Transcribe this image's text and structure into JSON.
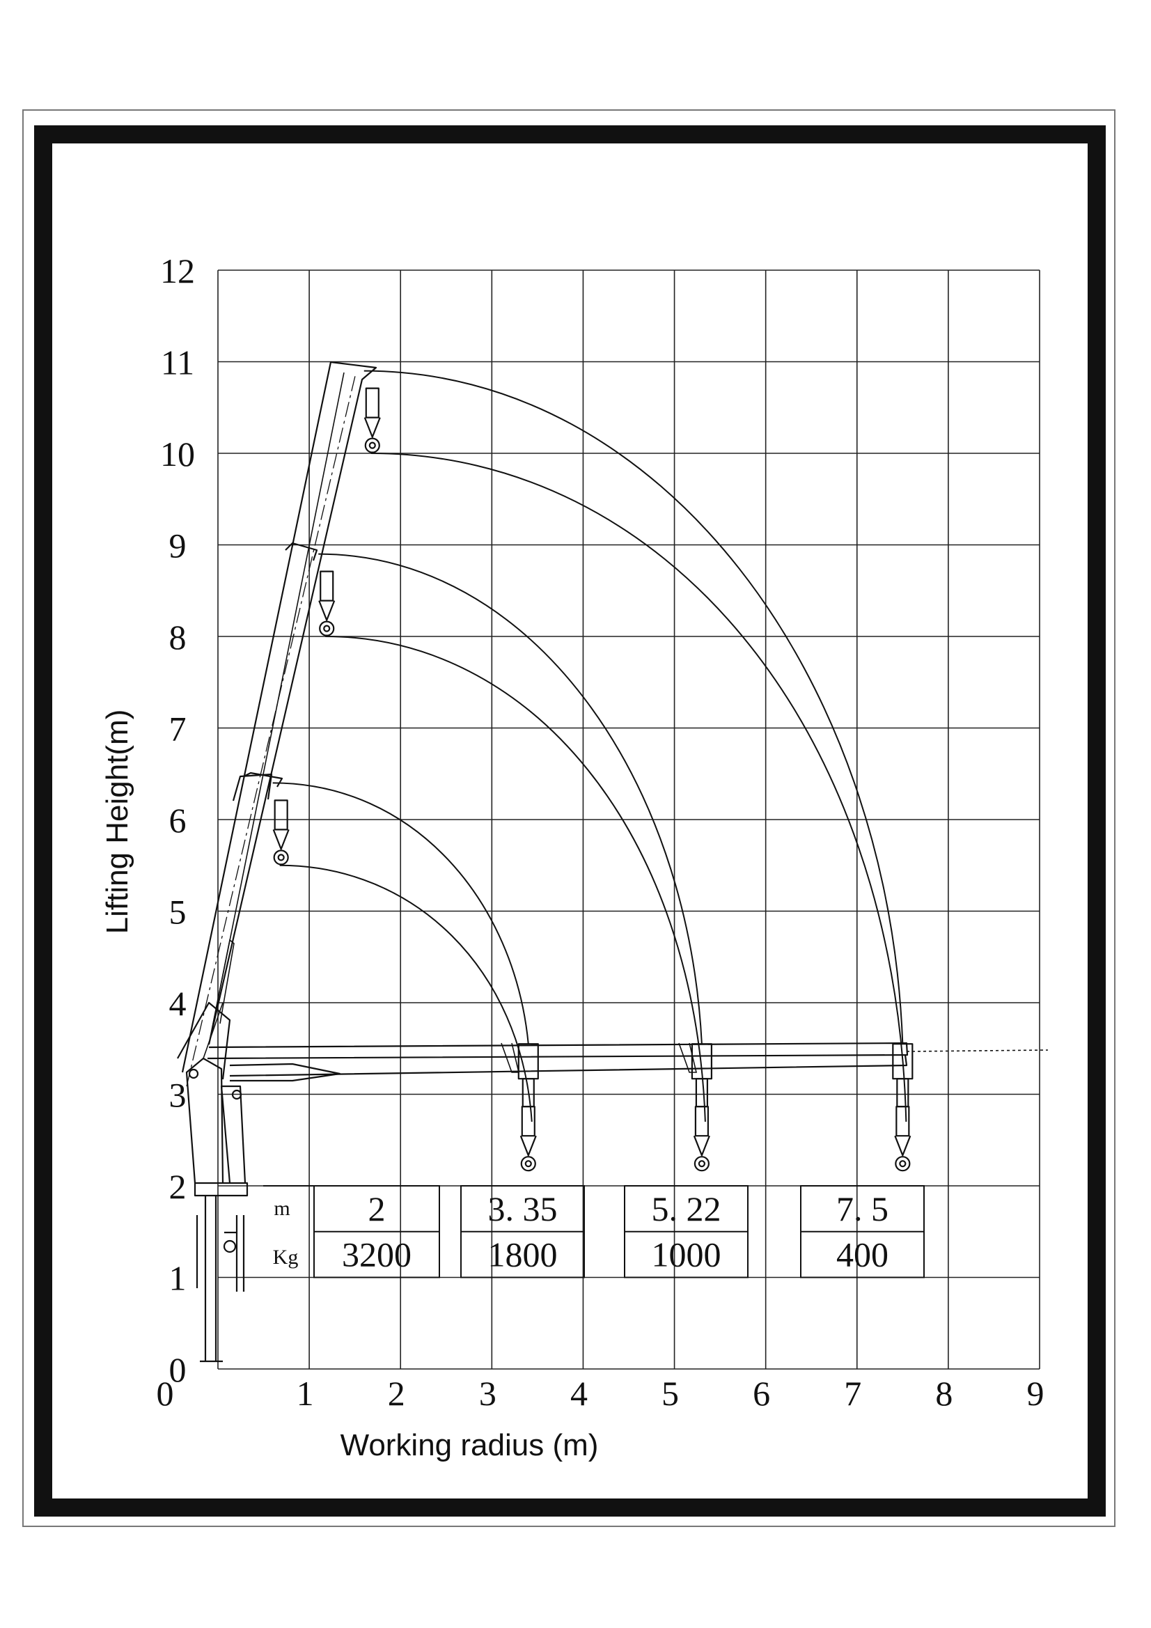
{
  "chart_data": {
    "type": "diagram",
    "xlabel": "Working radius  (m)",
    "ylabel": "Lifting Height(m)",
    "xlim": [
      0,
      9
    ],
    "ylim": [
      0,
      12
    ],
    "x_ticks": [
      "0",
      "1",
      "2",
      "3",
      "4",
      "5",
      "6",
      "7",
      "8",
      "9"
    ],
    "y_ticks": [
      "0",
      "1",
      "2",
      "3",
      "4",
      "5",
      "6",
      "7",
      "8",
      "9",
      "10",
      "11",
      "12"
    ],
    "grid": true,
    "load_table": {
      "row_labels": [
        "m",
        "Kg"
      ],
      "columns": [
        {
          "radius": "2",
          "load": "3200"
        },
        {
          "radius": "3. 35",
          "load": "1800"
        },
        {
          "radius": "5. 22",
          "load": "1000"
        },
        {
          "radius": "7. 5",
          "load": "400"
        }
      ]
    },
    "boom_positions": [
      {
        "tip_x": 0.6,
        "tip_y": 6.4,
        "extended_reach_x": 3.4
      },
      {
        "tip_x": 1.1,
        "tip_y": 8.9,
        "extended_reach_x": 5.3
      },
      {
        "tip_x": 1.6,
        "tip_y": 10.9,
        "extended_reach_x": 7.5
      }
    ]
  }
}
